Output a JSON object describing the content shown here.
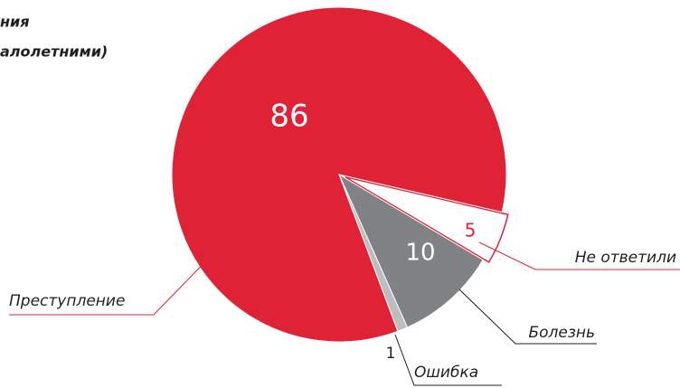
{
  "chart_data": {
    "type": "pie",
    "title": [
      "ния",
      "алолетними)"
    ],
    "categories": [
      "Не ответили",
      "Болезнь",
      "Ошибка",
      "Преступление"
    ],
    "values": [
      5,
      10,
      1,
      86
    ],
    "colors": [
      "#ffffff",
      "#808285",
      "#bcbdbf",
      "#e02236"
    ]
  }
}
